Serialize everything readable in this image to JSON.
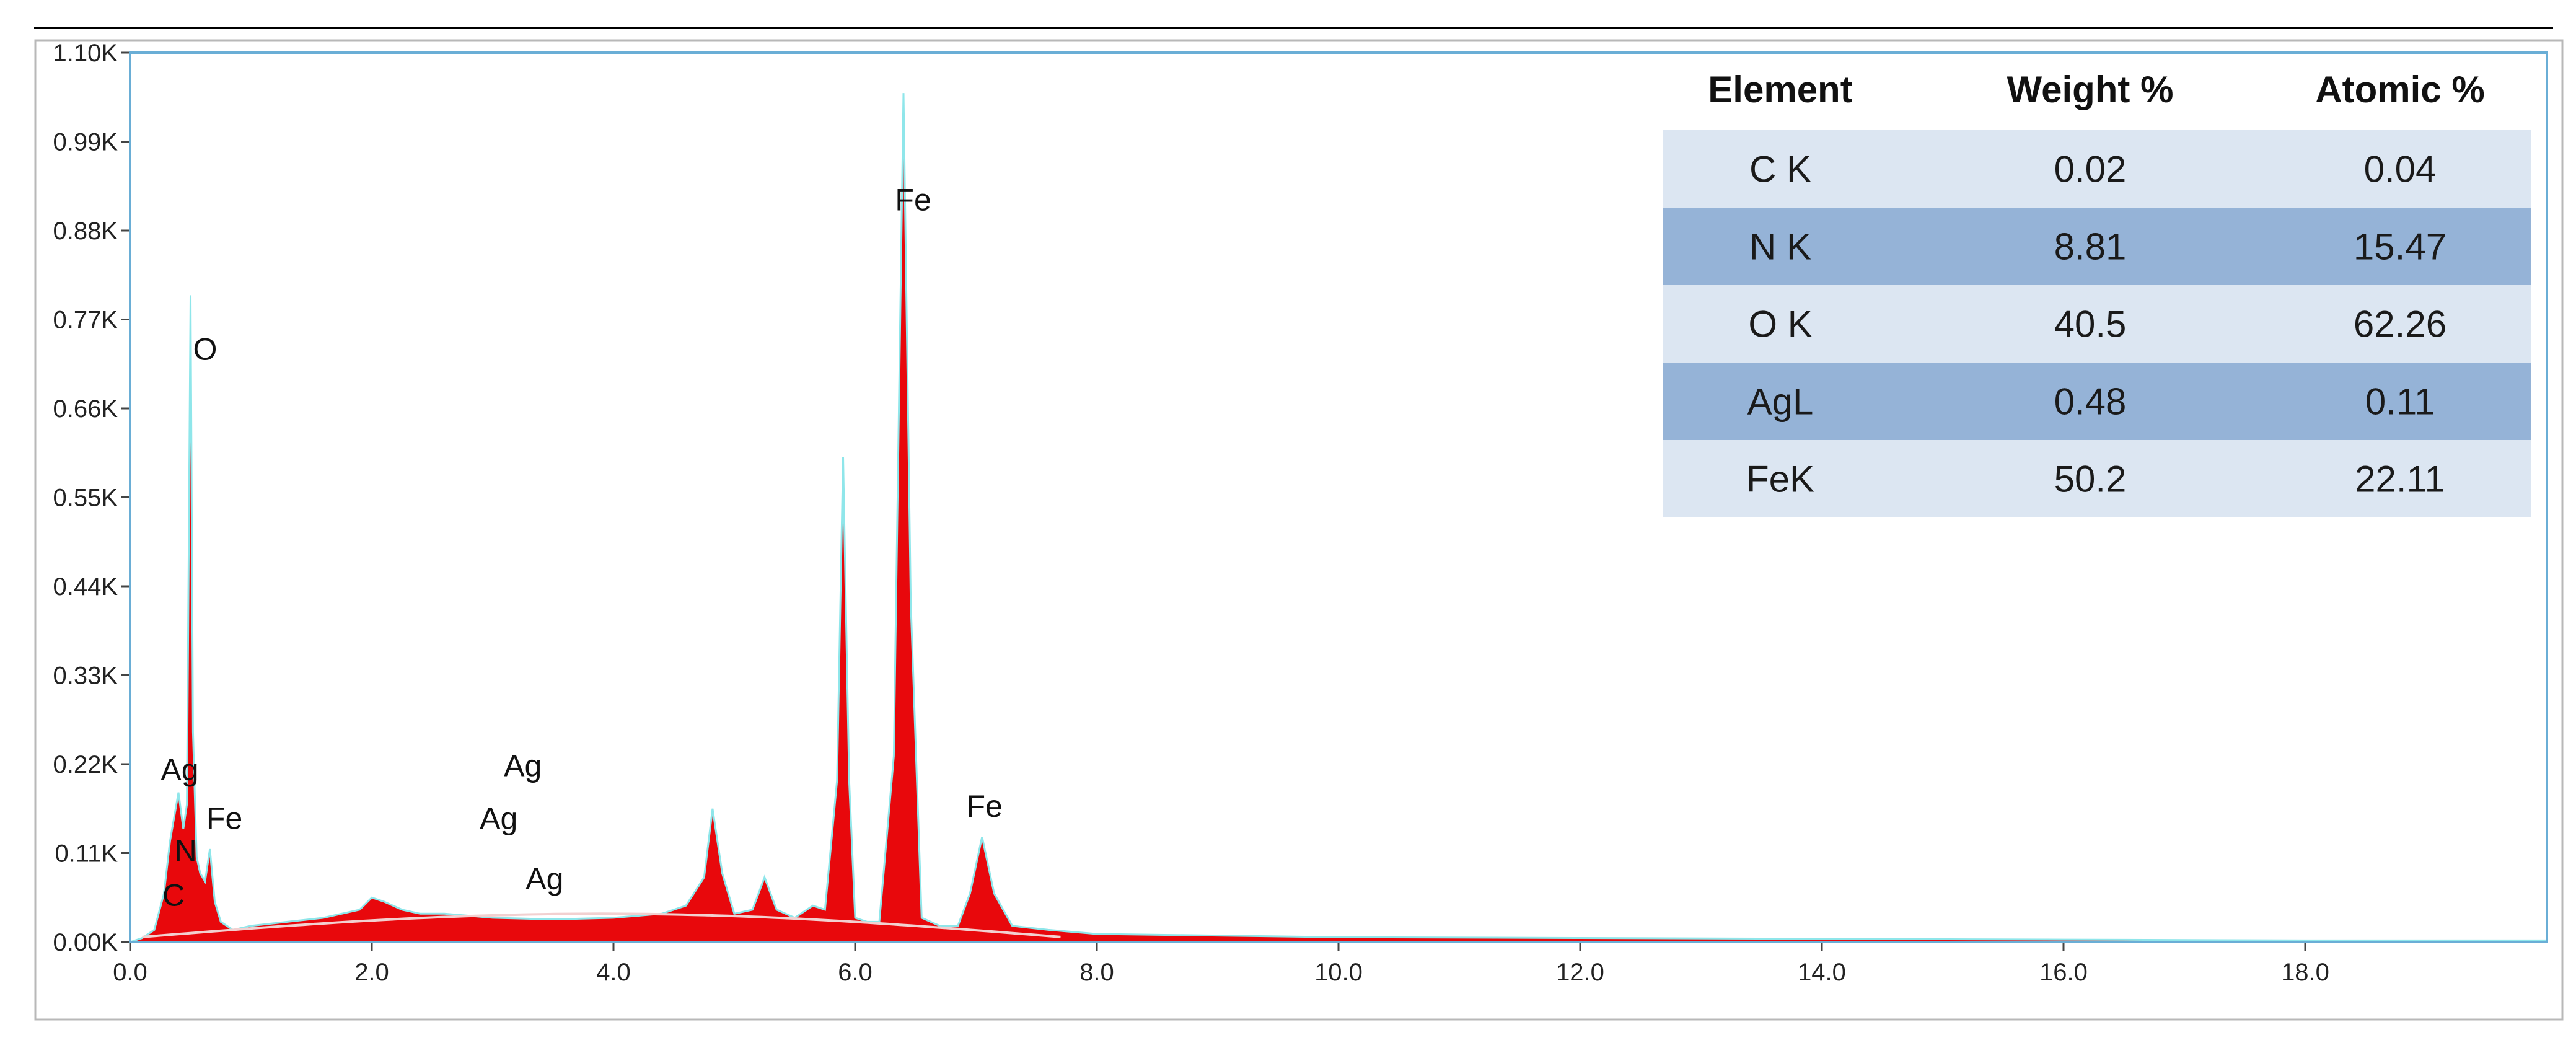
{
  "chart_data": {
    "type": "area",
    "title": "",
    "xlabel": "",
    "ylabel": "",
    "xlim": [
      0,
      20
    ],
    "ylim": [
      0,
      1100
    ],
    "x_ticks": [
      "0.0",
      "2.0",
      "4.0",
      "6.0",
      "8.0",
      "10.0",
      "12.0",
      "14.0",
      "16.0",
      "18.0"
    ],
    "x_tick_values": [
      0,
      2,
      4,
      6,
      8,
      10,
      12,
      14,
      16,
      18
    ],
    "y_ticks": [
      "0.00K",
      "0.11K",
      "0.22K",
      "0.33K",
      "0.44K",
      "0.55K",
      "0.66K",
      "0.77K",
      "0.88K",
      "0.99K",
      "1.10K"
    ],
    "y_tick_values": [
      0,
      110,
      220,
      330,
      440,
      550,
      660,
      770,
      880,
      990,
      1100
    ],
    "colors": {
      "fill": "#e8080c",
      "trace": "#8fe6ea",
      "fit": "#f2d0d0",
      "frame": "#6aaed6",
      "row_light": "#dce6f2",
      "row_dark": "#95b3d7"
    },
    "series": [
      {
        "x": [
          0.0,
          0.1,
          0.2,
          0.28,
          0.33,
          0.4,
          0.44,
          0.47,
          0.5,
          0.52,
          0.55,
          0.58,
          0.62,
          0.66,
          0.7,
          0.75,
          0.85,
          1.0,
          1.3,
          1.6,
          1.9,
          2.0,
          2.1,
          2.25,
          2.4,
          2.6,
          3.0,
          3.5,
          4.0,
          4.4,
          4.6,
          4.75,
          4.82,
          4.9,
          5.0,
          5.15,
          5.25,
          5.35,
          5.5,
          5.65,
          5.75,
          5.85,
          5.9,
          5.95,
          6.0,
          6.1,
          6.2,
          6.32,
          6.4,
          6.46,
          6.55,
          6.7,
          6.85,
          6.95,
          7.05,
          7.15,
          7.3,
          7.6,
          8.0,
          9.0,
          10.0,
          12.0,
          14.0,
          16.0,
          18.0,
          20.0
        ],
        "y": [
          0,
          5,
          15,
          60,
          125,
          185,
          140,
          170,
          800,
          260,
          105,
          85,
          75,
          115,
          50,
          25,
          15,
          20,
          25,
          30,
          40,
          55,
          50,
          40,
          35,
          35,
          30,
          28,
          30,
          35,
          45,
          80,
          165,
          85,
          35,
          40,
          80,
          40,
          30,
          45,
          40,
          200,
          600,
          200,
          30,
          25,
          25,
          230,
          1050,
          420,
          30,
          20,
          20,
          60,
          130,
          60,
          20,
          15,
          10,
          8,
          6,
          5,
          4,
          3,
          2,
          2
        ]
      }
    ],
    "peak_labels": [
      {
        "text": "O",
        "x": 0.62,
        "y": 720
      },
      {
        "text": "Ag",
        "x": 0.41,
        "y": 200
      },
      {
        "text": "Fe",
        "x": 0.78,
        "y": 140
      },
      {
        "text": "N",
        "x": 0.46,
        "y": 100
      },
      {
        "text": "C",
        "x": 0.36,
        "y": 45
      },
      {
        "text": "Ag",
        "x": 3.25,
        "y": 205
      },
      {
        "text": "Ag",
        "x": 3.05,
        "y": 140
      },
      {
        "text": "Ag",
        "x": 3.43,
        "y": 65
      },
      {
        "text": "Fe",
        "x": 6.48,
        "y": 905
      },
      {
        "text": "Fe",
        "x": 7.07,
        "y": 155
      }
    ],
    "table": {
      "headers": [
        "Element",
        "Weight %",
        "Atomic %"
      ],
      "rows": [
        [
          "C K",
          "0.02",
          "0.04"
        ],
        [
          "N K",
          "8.81",
          "15.47"
        ],
        [
          "O K",
          "40.5",
          "62.26"
        ],
        [
          "AgL",
          "0.48",
          "0.11"
        ],
        [
          "FeK",
          "50.2",
          "22.11"
        ]
      ]
    }
  }
}
